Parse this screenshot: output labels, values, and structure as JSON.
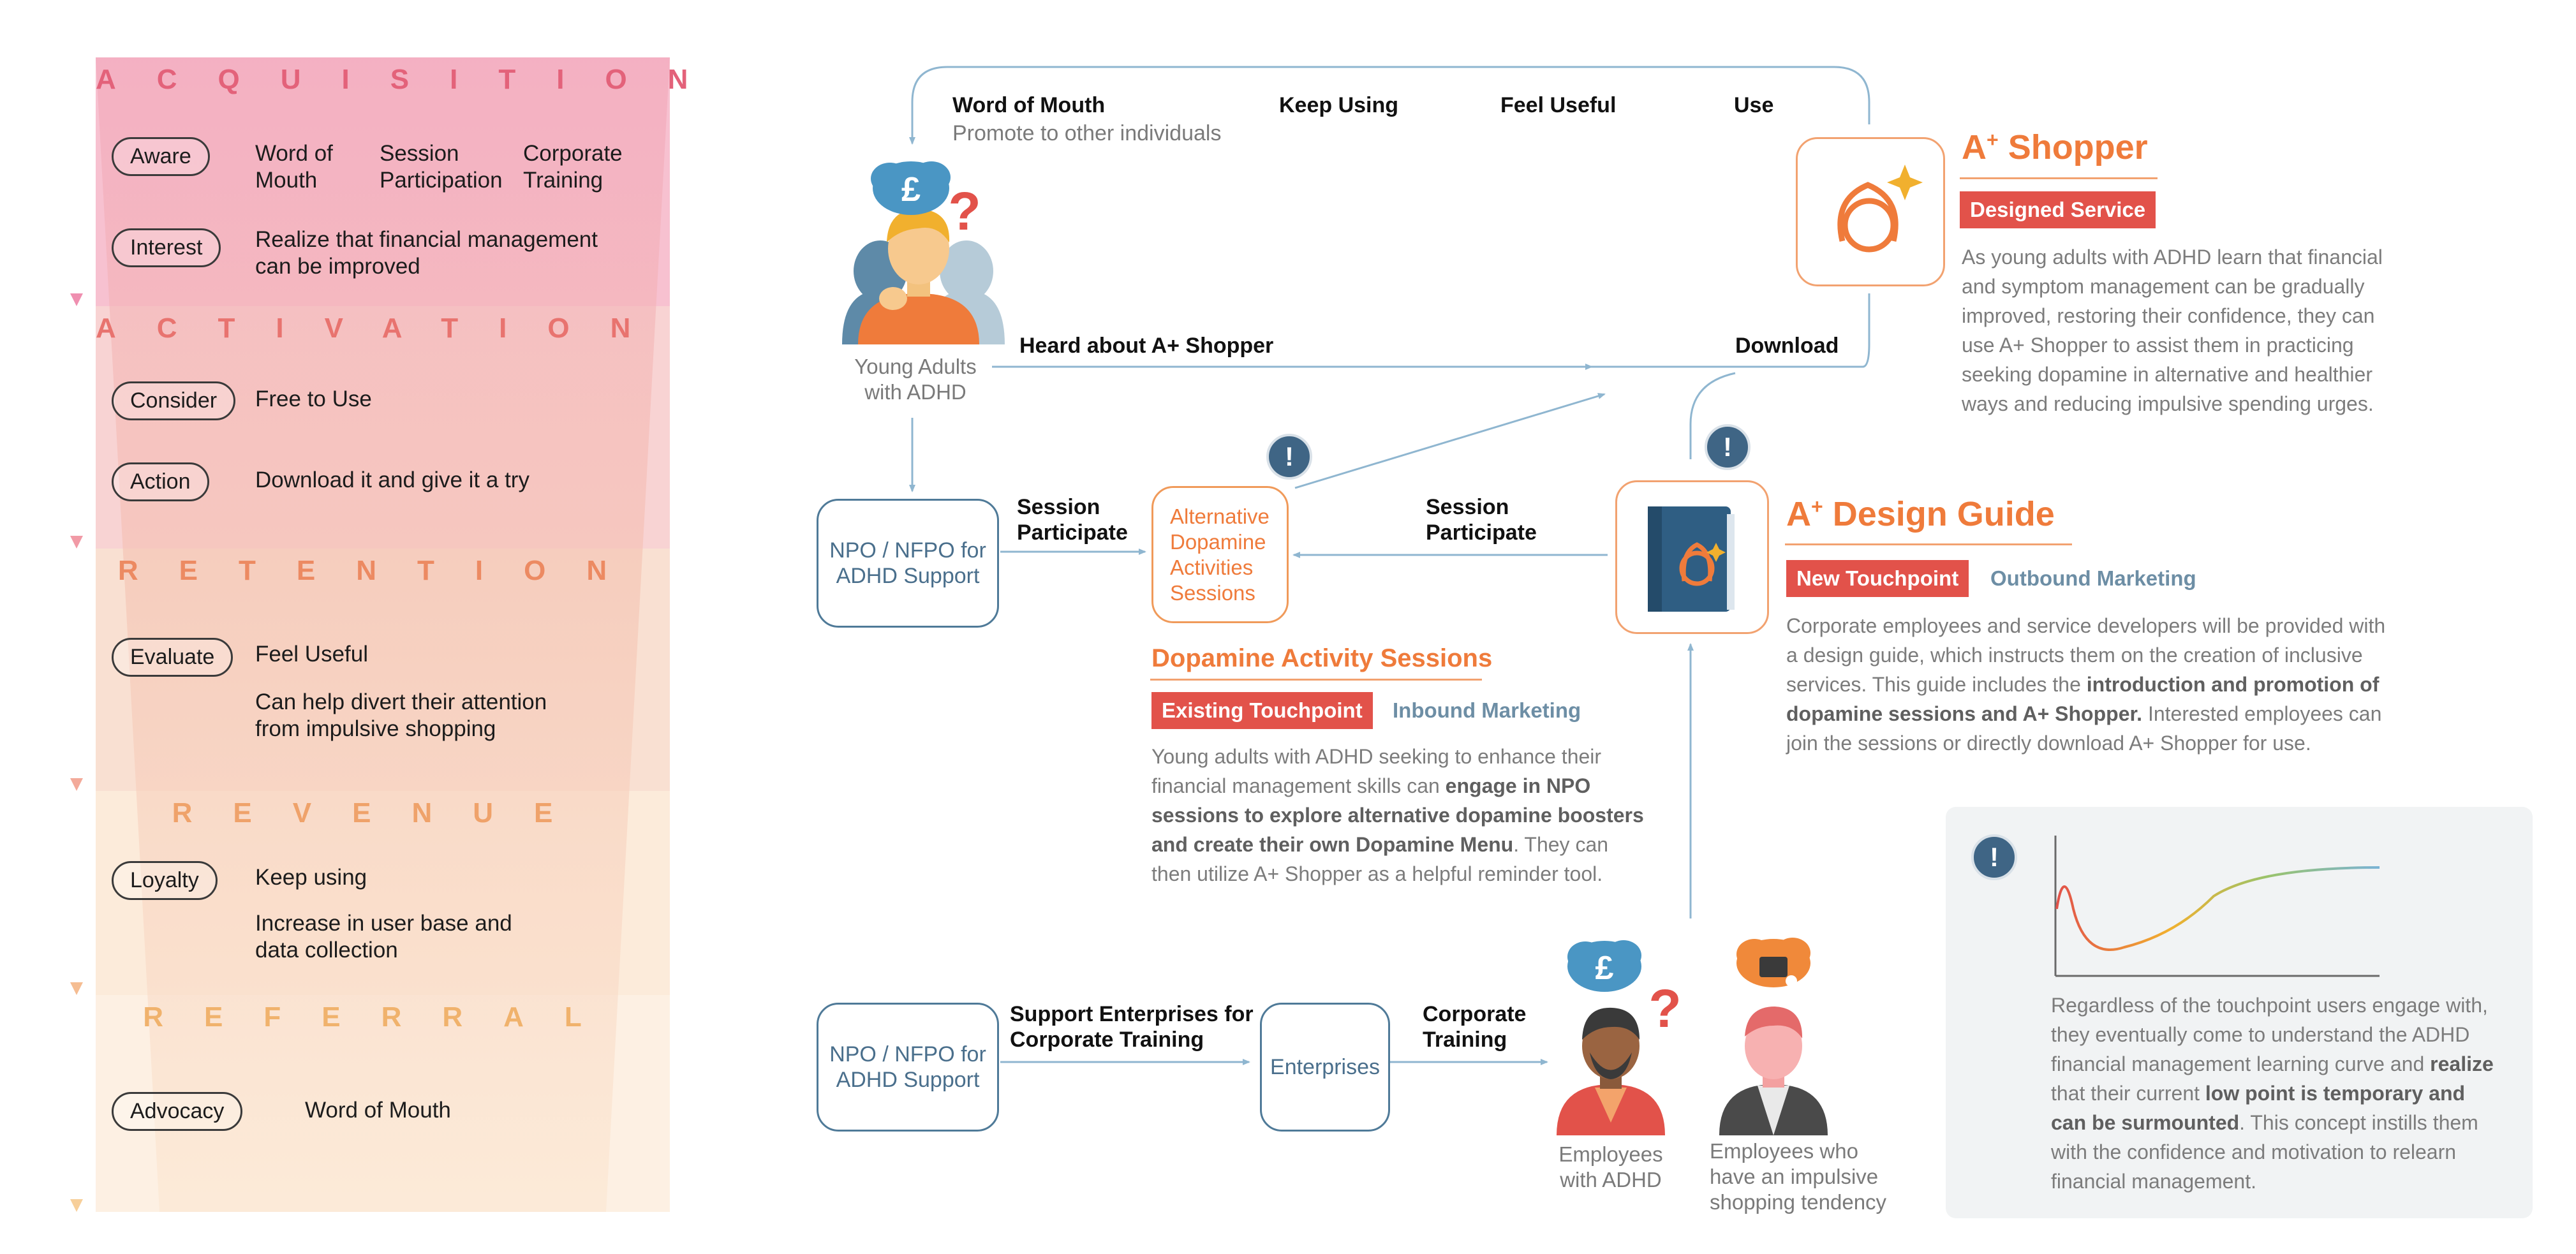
{
  "funnel": {
    "stages": [
      {
        "title": "ACQUISITION",
        "color": "#e3627a"
      },
      {
        "title": "ACTIVATION",
        "color": "#e8736f"
      },
      {
        "title": "RETENTION",
        "color": "#ec8a62"
      },
      {
        "title": "REVENUE",
        "color": "#efa26a"
      },
      {
        "title": "REFERRAL",
        "color": "#f0b26c"
      }
    ],
    "rows": [
      {
        "pill": "Aware",
        "texts": [
          "Word of\nMouth",
          "Session\nParticipation",
          "Corporate\nTraining"
        ]
      },
      {
        "pill": "Interest",
        "texts": [
          "Realize that financial management\ncan be improved"
        ]
      },
      {
        "pill": "Consider",
        "texts": [
          "Free to Use"
        ]
      },
      {
        "pill": "Action",
        "texts": [
          "Download it and give it a try"
        ]
      },
      {
        "pill": "Evaluate",
        "texts": [
          "Feel Useful",
          "Can help divert their attention\nfrom impulsive shopping"
        ]
      },
      {
        "pill": "Loyalty",
        "texts": [
          "Keep using",
          "Increase in user base and\ndata collection"
        ]
      },
      {
        "pill": "Advocacy",
        "texts": [
          "Word of Mouth"
        ]
      }
    ]
  },
  "flow": {
    "top_labels": {
      "word_of_mouth": "Word of Mouth",
      "promote": "Promote to other individuals",
      "keep_using": "Keep Using",
      "feel_useful": "Feel Useful",
      "use": "Use"
    },
    "heard": "Heard about A+ Shopper",
    "download": "Download",
    "young_adults": "Young Adults\nwith ADHD",
    "npo1": "NPO / NFPO for\nADHD Support",
    "npo2": "NPO / NFPO for\nADHD Support",
    "session1": "Session\nParticipate",
    "session2": "Session\nParticipate",
    "alt_sessions": "Alternative\nDopamine\nActivities\nSessions",
    "support_enterprises": "Support Enterprises for\nCorporate Training",
    "enterprises": "Enterprises",
    "corporate_training": "Corporate\nTraining",
    "employees_adhd": "Employees\nwith ADHD",
    "employees_impulsive": "Employees who\nhave an impulsive\nshopping tendency",
    "pound": "£",
    "question": "?",
    "excl": "!"
  },
  "shopper": {
    "title_a": "A",
    "title_plus": "+",
    "title_rest": " Shopper",
    "tag": "Designed Service",
    "text": "As young adults with ADHD learn that financial and symptom management can be gradually improved, restoring their confidence, they can use A+ Shopper to assist them in practicing seeking dopamine in alternative and healthier ways and reducing impulsive spending urges."
  },
  "guide": {
    "title_a": "A",
    "title_plus": "+",
    "title_rest": " Design Guide",
    "tag_red": "New Touchpoint",
    "tag_blue": "Outbound Marketing",
    "text_1": "Corporate employees and service developers will be provided with a design guide, which instructs them on the creation of inclusive services. This guide includes the ",
    "text_bold": "introduction and promotion of dopamine sessions and A+ Shopper.",
    "text_2": " Interested employees can join the sessions or directly download A+ Shopper for use."
  },
  "sessions": {
    "title": "Dopamine Activity Sessions",
    "tag_red": "Existing Touchpoint",
    "tag_blue": "Inbound Marketing",
    "text_1": "Young adults with ADHD seeking to enhance their financial management skills can ",
    "text_bold": "engage in NPO sessions to explore alternative dopamine boosters and create their own Dopamine Menu",
    "text_2": ". They can then utilize A+ Shopper as a helpful reminder tool."
  },
  "curve": {
    "text_1": "Regardless of the touchpoint users engage with, they eventually come to understand the ADHD financial management learning curve and ",
    "bold_1": "realize",
    "text_2": " that their current ",
    "bold_2": "low point is temporary and can be surmounted",
    "text_3": ". This concept instills them with the confidence and motivation to relearn financial management."
  },
  "colors": {
    "orange": "#ef7b3b",
    "blue": "#4f7a98",
    "red": "#e2524a",
    "arrow": "#8fb6d0"
  }
}
